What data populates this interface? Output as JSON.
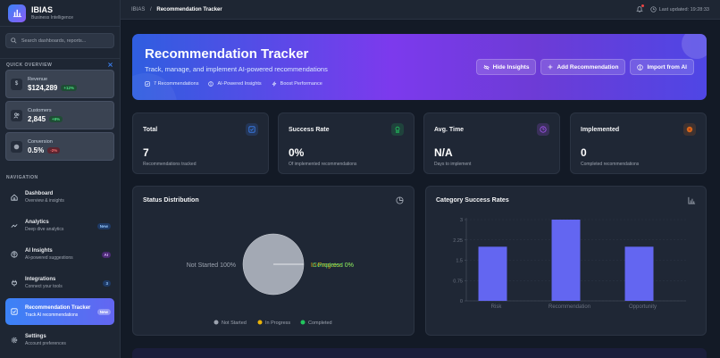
{
  "brand": {
    "name": "IBIAS",
    "subtitle": "Business Intelligence"
  },
  "search": {
    "placeholder": "Search dashboards, reports..."
  },
  "quick_overview": {
    "title": "QUICK OVERVIEW",
    "stats": [
      {
        "icon": "dollar-icon",
        "label": "Revenue",
        "value": "$124,289",
        "change": "+12%",
        "trend": "up"
      },
      {
        "icon": "users-icon",
        "label": "Customers",
        "value": "2,845",
        "change": "+8%",
        "trend": "up"
      },
      {
        "icon": "circle-icon",
        "label": "Conversion",
        "value": "0.5%",
        "change": "-2%",
        "trend": "down"
      }
    ]
  },
  "navigation": {
    "title": "NAVIGATION",
    "items": [
      {
        "label": "Dashboard",
        "sub": "Overview & insights",
        "icon": "home-icon",
        "badge": null
      },
      {
        "label": "Analytics",
        "sub": "Deep dive analytics",
        "icon": "trend-icon",
        "badge": "New"
      },
      {
        "label": "AI Insights",
        "sub": "AI-powered suggestions",
        "icon": "brain-icon",
        "badge": "AI"
      },
      {
        "label": "Integrations",
        "sub": "Connect your tools",
        "icon": "plug-icon",
        "badge": "3"
      },
      {
        "label": "Recommendation Tracker",
        "sub": "Track AI recommendations",
        "icon": "checkbox-icon",
        "badge": "New",
        "active": true
      },
      {
        "label": "Settings",
        "sub": "Account preferences",
        "icon": "gear-icon",
        "badge": null
      }
    ]
  },
  "topbar": {
    "breadcrumb_root": "IBIAS",
    "breadcrumb_sep": "/",
    "breadcrumb_current": "Recommendation Tracker",
    "last_updated": "Last updated: 19:28:33"
  },
  "hero": {
    "title": "Recommendation Tracker",
    "subtitle": "Track, manage, and implement AI-powered recommendations",
    "tags": [
      "7 Recommendations",
      "AI-Powered Insights",
      "Boost Performance"
    ],
    "buttons": {
      "hide_insights": "Hide Insights",
      "add": "Add Recommendation",
      "import": "Import from AI"
    }
  },
  "kpis": [
    {
      "title": "Total",
      "value": "7",
      "sub": "Recommendations tracked",
      "color": "#3b82f6"
    },
    {
      "title": "Success Rate",
      "value": "0%",
      "sub": "Of implemented recommendations",
      "color": "#22c55e"
    },
    {
      "title": "Avg. Time",
      "value": "N/A",
      "sub": "Days to implement",
      "color": "#a855f7"
    },
    {
      "title": "Implemented",
      "value": "0",
      "sub": "Completed recommendations",
      "color": "#f97316"
    }
  ],
  "status_panel": {
    "title": "Status Distribution",
    "label_left": "Not Started 100%",
    "label_right_a": "In Progress 0%",
    "label_right_b": "Completed 0%",
    "legend": [
      "Not Started",
      "In Progress",
      "Completed"
    ]
  },
  "category_panel": {
    "title": "Category Success Rates"
  },
  "chart_data": [
    {
      "type": "pie",
      "title": "Status Distribution",
      "categories": [
        "Not Started",
        "In Progress",
        "Completed"
      ],
      "values": [
        100,
        0,
        0
      ],
      "colors": [
        "#9ca3af",
        "#eab308",
        "#22c55e"
      ],
      "legend_position": "bottom"
    },
    {
      "type": "bar",
      "title": "Category Success Rates",
      "categories": [
        "Risk",
        "Recommendation",
        "Opportunity"
      ],
      "values": [
        2,
        3,
        2
      ],
      "yticks": [
        "0",
        "0.75",
        "1.5",
        "2.25",
        "3"
      ],
      "ylim": [
        0,
        3
      ],
      "grid": true,
      "color": "#6366f1"
    }
  ]
}
